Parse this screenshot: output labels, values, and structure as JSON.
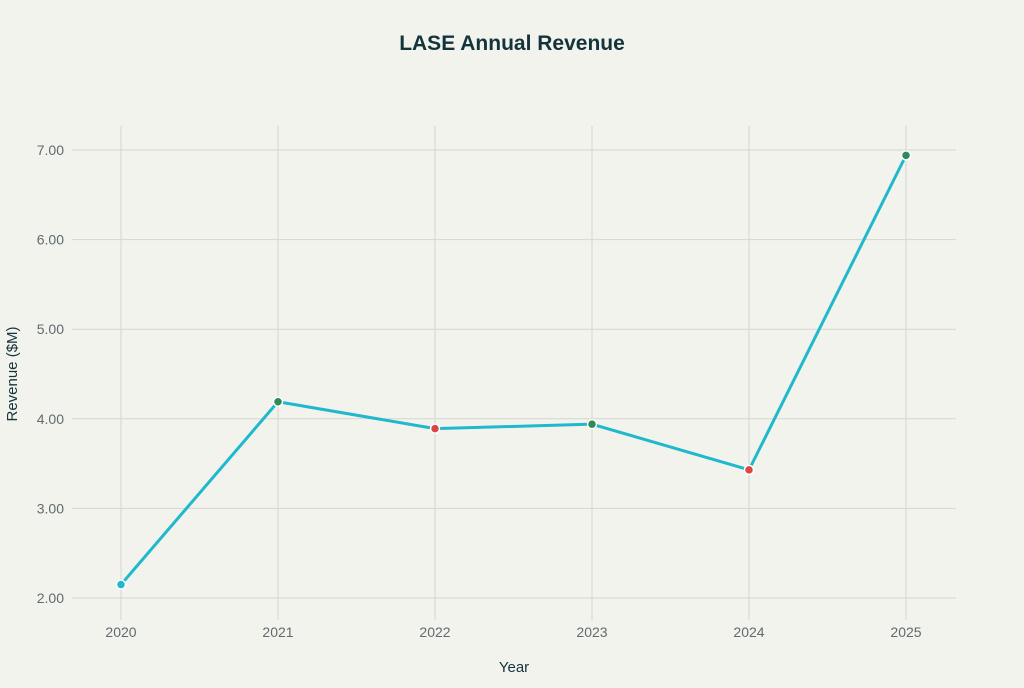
{
  "chart_data": {
    "type": "line",
    "title": "LASE Annual Revenue",
    "xlabel": "Year",
    "ylabel": "Revenue ($M)",
    "categories": [
      "2020",
      "2021",
      "2022",
      "2023",
      "2024",
      "2025"
    ],
    "series": [
      {
        "values": [
          2.15,
          4.19,
          3.89,
          3.94,
          3.43,
          6.94
        ],
        "line_color": "#1FB8CD",
        "marker_colors": [
          "#1FB8CD",
          "#2E8B57",
          "#DB4545",
          "#2E8B57",
          "#DB4545",
          "#2E8B57"
        ]
      }
    ],
    "yticks": [
      "2.00",
      "3.00",
      "4.00",
      "5.00",
      "6.00",
      "7.00"
    ],
    "ylim": [
      1.7,
      7.25
    ],
    "grid": true,
    "background": "#F3F3EE",
    "title_color": "#13343B"
  }
}
